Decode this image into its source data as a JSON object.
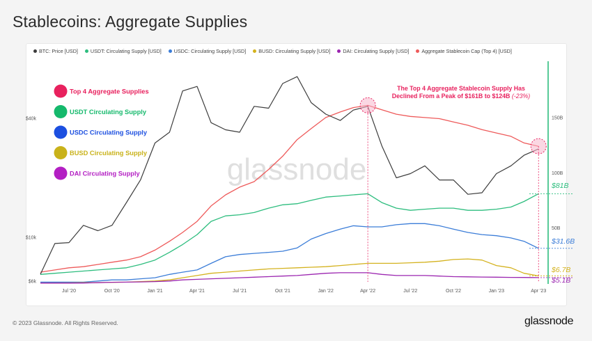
{
  "title": "Stablecoins: Aggregate Supplies",
  "footer": "© 2023 Glassnode. All Rights Reserved.",
  "brand": "glassnode",
  "legend": [
    {
      "label": "BTC: Price [USD]",
      "color": "#3c3c3c"
    },
    {
      "label": "USDT: Circulating Supply [USD]",
      "color": "#2dbd7e"
    },
    {
      "label": "USDC: Circulating Supply [USD]",
      "color": "#3b7dd8"
    },
    {
      "label": "BUSD: Circulating Supply [USD]",
      "color": "#d4b21e"
    },
    {
      "label": "DAI: Circulating Supply [USD]",
      "color": "#9b25b0"
    },
    {
      "label": "Aggregate Stablecoin Cap (Top 4) [USD]",
      "color": "#ee5a5a"
    }
  ],
  "chart_data": {
    "type": "line",
    "watermark": "glassnode",
    "xlabels": [
      "Jul '20",
      "Oct '20",
      "Jan '21",
      "Apr '21",
      "Jul '21",
      "Oct '21",
      "Jan '22",
      "Apr '22",
      "Jul '22",
      "Oct '22",
      "Jan '23",
      "Apr '23"
    ],
    "y_left": {
      "ticks": [
        "$6k",
        "$10k",
        "$40k"
      ],
      "values": [
        6000,
        10000,
        40000
      ],
      "scale": "log"
    },
    "y_right": {
      "ticks": [
        "50B",
        "100B",
        "150B"
      ],
      "values": [
        50,
        100,
        150
      ],
      "range": [
        0,
        200
      ]
    },
    "series": [
      {
        "name": "BTC: Price [USD]",
        "axis": "left",
        "color": "#3c3c3c",
        "x": [
          "2020-05-01",
          "2020-06-01",
          "2020-07-01",
          "2020-08-01",
          "2020-09-01",
          "2020-10-01",
          "2020-11-01",
          "2020-12-01",
          "2021-01-01",
          "2021-02-01",
          "2021-03-01",
          "2021-04-01",
          "2021-05-01",
          "2021-06-01",
          "2021-07-01",
          "2021-08-01",
          "2021-09-01",
          "2021-10-01",
          "2021-11-01",
          "2021-12-01",
          "2022-01-01",
          "2022-02-01",
          "2022-03-01",
          "2022-04-01",
          "2022-05-01",
          "2022-06-01",
          "2022-07-01",
          "2022-08-01",
          "2022-09-01",
          "2022-10-01",
          "2022-11-01",
          "2022-12-01",
          "2023-01-01",
          "2023-02-01",
          "2023-03-01",
          "2023-04-01"
        ],
        "values": [
          6500,
          9300,
          9400,
          11500,
          10800,
          11500,
          15000,
          19500,
          30000,
          34000,
          55000,
          58000,
          38000,
          35000,
          34000,
          46000,
          45000,
          60000,
          65000,
          48000,
          42000,
          39000,
          44000,
          46000,
          29000,
          20000,
          21000,
          23000,
          19500,
          19500,
          16500,
          16800,
          21000,
          23000,
          26000,
          28000
        ]
      },
      {
        "name": "Aggregate Stablecoin Cap (Top 4) [USD]",
        "axis": "right",
        "color": "#ee5a5a",
        "x": [
          "2020-05-01",
          "2020-06-01",
          "2020-07-01",
          "2020-08-01",
          "2020-09-01",
          "2020-10-01",
          "2020-11-01",
          "2020-12-01",
          "2021-01-01",
          "2021-02-01",
          "2021-03-01",
          "2021-04-01",
          "2021-05-01",
          "2021-06-01",
          "2021-07-01",
          "2021-08-01",
          "2021-09-01",
          "2021-10-01",
          "2021-11-01",
          "2021-12-01",
          "2022-01-01",
          "2022-02-01",
          "2022-03-01",
          "2022-04-01",
          "2022-05-01",
          "2022-06-01",
          "2022-07-01",
          "2022-08-01",
          "2022-09-01",
          "2022-10-01",
          "2022-11-01",
          "2022-12-01",
          "2023-01-01",
          "2023-02-01",
          "2023-03-01",
          "2023-04-01"
        ],
        "values": [
          10,
          12,
          14,
          15,
          17,
          19,
          21,
          24,
          30,
          38,
          46,
          56,
          70,
          80,
          87,
          92,
          103,
          115,
          130,
          140,
          150,
          155,
          159,
          161,
          157,
          153,
          151,
          150,
          149,
          146,
          143,
          139,
          136,
          133,
          127,
          124
        ]
      },
      {
        "name": "USDT: Circulating Supply [USD]",
        "axis": "right",
        "color": "#2dbd7e",
        "x": [
          "2020-05-01",
          "2020-06-01",
          "2020-07-01",
          "2020-08-01",
          "2020-09-01",
          "2020-10-01",
          "2020-11-01",
          "2020-12-01",
          "2021-01-01",
          "2021-02-01",
          "2021-03-01",
          "2021-04-01",
          "2021-05-01",
          "2021-06-01",
          "2021-07-01",
          "2021-08-01",
          "2021-09-01",
          "2021-10-01",
          "2021-11-01",
          "2021-12-01",
          "2022-01-01",
          "2022-02-01",
          "2022-03-01",
          "2022-04-01",
          "2022-05-01",
          "2022-06-01",
          "2022-07-01",
          "2022-08-01",
          "2022-09-01",
          "2022-10-01",
          "2022-11-01",
          "2022-12-01",
          "2023-01-01",
          "2023-02-01",
          "2023-03-01",
          "2023-04-01"
        ],
        "values": [
          8,
          9,
          10,
          11,
          12,
          13,
          14,
          17,
          21,
          28,
          35,
          44,
          56,
          61,
          62,
          64,
          68,
          71,
          72,
          75,
          78,
          79,
          80,
          81,
          73,
          68,
          66,
          67,
          68,
          68,
          66,
          66,
          67,
          69,
          74,
          81
        ]
      },
      {
        "name": "USDC: Circulating Supply [USD]",
        "axis": "right",
        "color": "#3b7dd8",
        "x": [
          "2020-05-01",
          "2020-06-01",
          "2020-07-01",
          "2020-08-01",
          "2020-09-01",
          "2020-10-01",
          "2020-11-01",
          "2020-12-01",
          "2021-01-01",
          "2021-02-01",
          "2021-03-01",
          "2021-04-01",
          "2021-05-01",
          "2021-06-01",
          "2021-07-01",
          "2021-08-01",
          "2021-09-01",
          "2021-10-01",
          "2021-11-01",
          "2021-12-01",
          "2022-01-01",
          "2022-02-01",
          "2022-03-01",
          "2022-04-01",
          "2022-05-01",
          "2022-06-01",
          "2022-07-01",
          "2022-08-01",
          "2022-09-01",
          "2022-10-01",
          "2022-11-01",
          "2022-12-01",
          "2023-01-01",
          "2023-02-01",
          "2023-03-01",
          "2023-04-01"
        ],
        "values": [
          1,
          1,
          1,
          1,
          2,
          3,
          3,
          4,
          5,
          8,
          10,
          12,
          18,
          24,
          26,
          27,
          28,
          29,
          32,
          40,
          45,
          49,
          52,
          51,
          51,
          53,
          54,
          54,
          52,
          49,
          46,
          44,
          43,
          41,
          38,
          31.6
        ]
      },
      {
        "name": "BUSD: Circulating Supply [USD]",
        "axis": "right",
        "color": "#d4b21e",
        "x": [
          "2020-05-01",
          "2020-06-01",
          "2020-07-01",
          "2020-08-01",
          "2020-09-01",
          "2020-10-01",
          "2020-11-01",
          "2020-12-01",
          "2021-01-01",
          "2021-02-01",
          "2021-03-01",
          "2021-04-01",
          "2021-05-01",
          "2021-06-01",
          "2021-07-01",
          "2021-08-01",
          "2021-09-01",
          "2021-10-01",
          "2021-11-01",
          "2021-12-01",
          "2022-01-01",
          "2022-02-01",
          "2022-03-01",
          "2022-04-01",
          "2022-05-01",
          "2022-06-01",
          "2022-07-01",
          "2022-08-01",
          "2022-09-01",
          "2022-10-01",
          "2022-11-01",
          "2022-12-01",
          "2023-01-01",
          "2023-02-01",
          "2023-03-01",
          "2023-04-01"
        ],
        "values": [
          0.1,
          0.2,
          0.3,
          0.5,
          0.6,
          0.8,
          1,
          1.5,
          2,
          3,
          5,
          7,
          9,
          10,
          11,
          12,
          13,
          13.5,
          14,
          14.5,
          15,
          16,
          17,
          18,
          18,
          18,
          18.5,
          19,
          20,
          21.5,
          22,
          21,
          16,
          14,
          9,
          6.7
        ]
      },
      {
        "name": "DAI: Circulating Supply [USD]",
        "axis": "right",
        "color": "#9b25b0",
        "x": [
          "2020-05-01",
          "2020-06-01",
          "2020-07-01",
          "2020-08-01",
          "2020-09-01",
          "2020-10-01",
          "2020-11-01",
          "2020-12-01",
          "2021-01-01",
          "2021-02-01",
          "2021-03-01",
          "2021-04-01",
          "2021-05-01",
          "2021-06-01",
          "2021-07-01",
          "2021-08-01",
          "2021-09-01",
          "2021-10-01",
          "2021-11-01",
          "2021-12-01",
          "2022-01-01",
          "2022-02-01",
          "2022-03-01",
          "2022-04-01",
          "2022-05-01",
          "2022-06-01",
          "2022-07-01",
          "2022-08-01",
          "2022-09-01",
          "2022-10-01",
          "2022-11-01",
          "2022-12-01",
          "2023-01-01",
          "2023-02-01",
          "2023-03-01",
          "2023-04-01"
        ],
        "values": [
          0.1,
          0.1,
          0.1,
          0.2,
          0.5,
          0.9,
          1,
          1.2,
          1.5,
          2,
          3,
          3.5,
          4,
          4.5,
          5,
          5.5,
          6,
          6.5,
          7,
          8,
          9,
          9.5,
          9.5,
          9.5,
          8,
          7,
          7,
          7,
          6.5,
          6,
          5.8,
          5.6,
          5.5,
          5.3,
          5.2,
          5.1
        ]
      }
    ],
    "end_labels": [
      {
        "text": "$81B",
        "color": "#2dbd7e",
        "value": 81
      },
      {
        "text": "$31.6B",
        "color": "#3b7dd8",
        "value": 31.6
      },
      {
        "text": "$6.7B",
        "color": "#d4b21e",
        "value": 6.7
      },
      {
        "text": "$5.1B",
        "color": "#9b25b0",
        "value": 5.1
      }
    ],
    "inline_legend": [
      {
        "text": "Top 4 Aggregate Supplies",
        "color": "#e8215e"
      },
      {
        "text": "USDT Circulating Supply",
        "color": "#15b96c"
      },
      {
        "text": "USDC Circulating Supply",
        "color": "#1c4fe0"
      },
      {
        "text": "BUSD Circulating Supply",
        "color": "#c9b21a"
      },
      {
        "text": "DAI Circulating Supply",
        "color": "#b31fc3"
      }
    ],
    "annotation": {
      "line1": "The Top 4 Aggregate Stablecoin Supply Has",
      "line2": "Declined From a Peak of $161B to $124B",
      "line2_suffix": "(-23%)",
      "color": "#e8215e"
    }
  }
}
